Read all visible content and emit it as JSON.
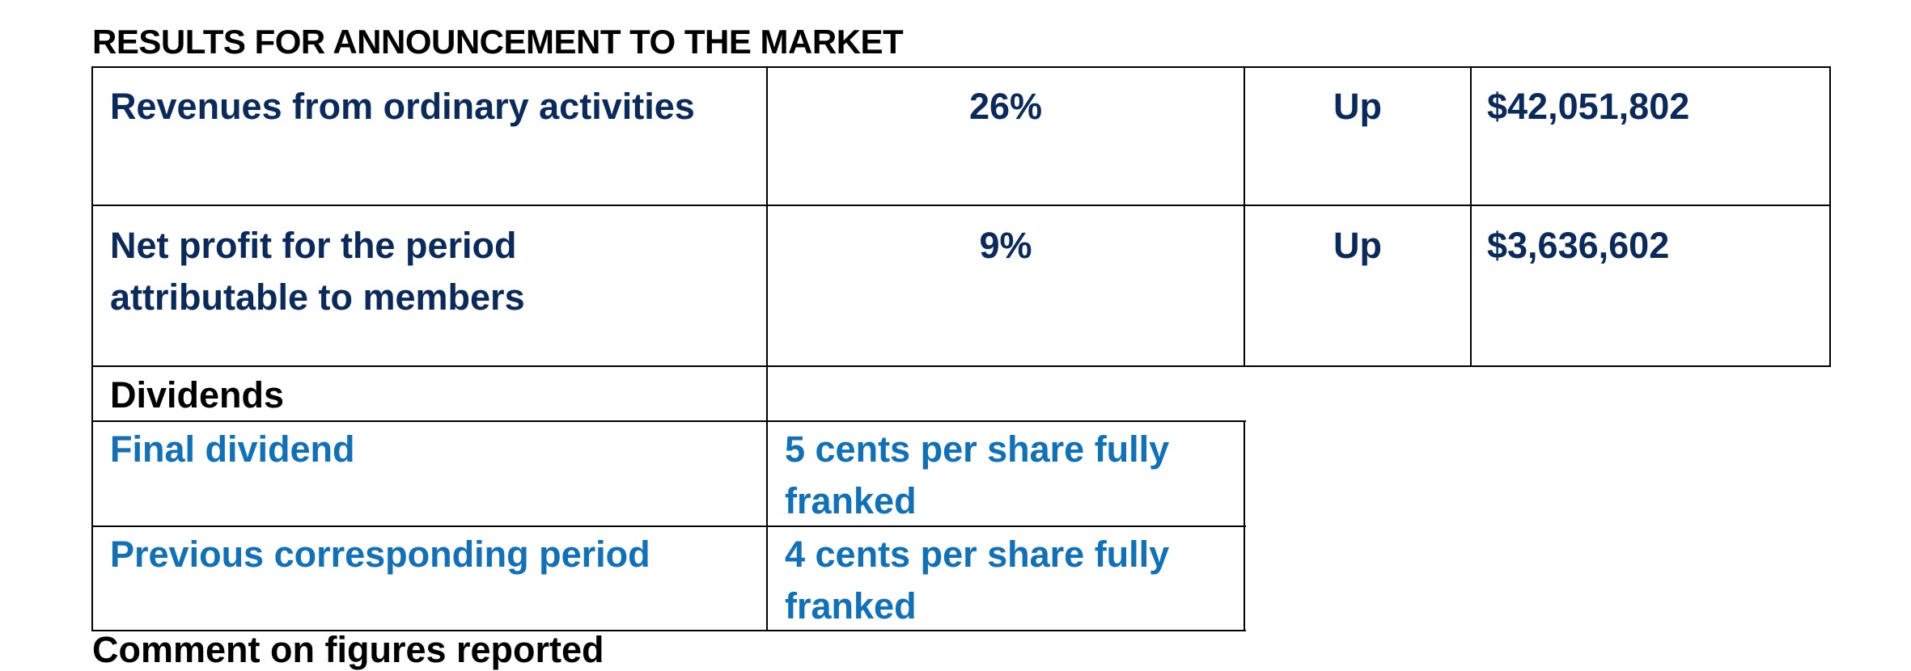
{
  "heading": "RESULTS FOR ANNOUNCEMENT TO THE MARKET",
  "results": [
    {
      "label": "Revenues from ordinary activities",
      "change": "26%",
      "direction": "Up",
      "amount": "$42,051,802"
    },
    {
      "label_line1": "Net profit for the period",
      "label_line2": "attributable to members",
      "change": "9%",
      "direction": "Up",
      "amount": "$3,636,602"
    }
  ],
  "dividends": {
    "title": "Dividends",
    "rows": [
      {
        "label": "Final dividend",
        "value_line1": "5 cents per share fully",
        "value_line2": "franked"
      },
      {
        "label": "Previous corresponding period",
        "value_line1": "4 cents per share fully",
        "value_line2": "franked"
      }
    ]
  },
  "cutoff_text": "Comment on figures reported"
}
